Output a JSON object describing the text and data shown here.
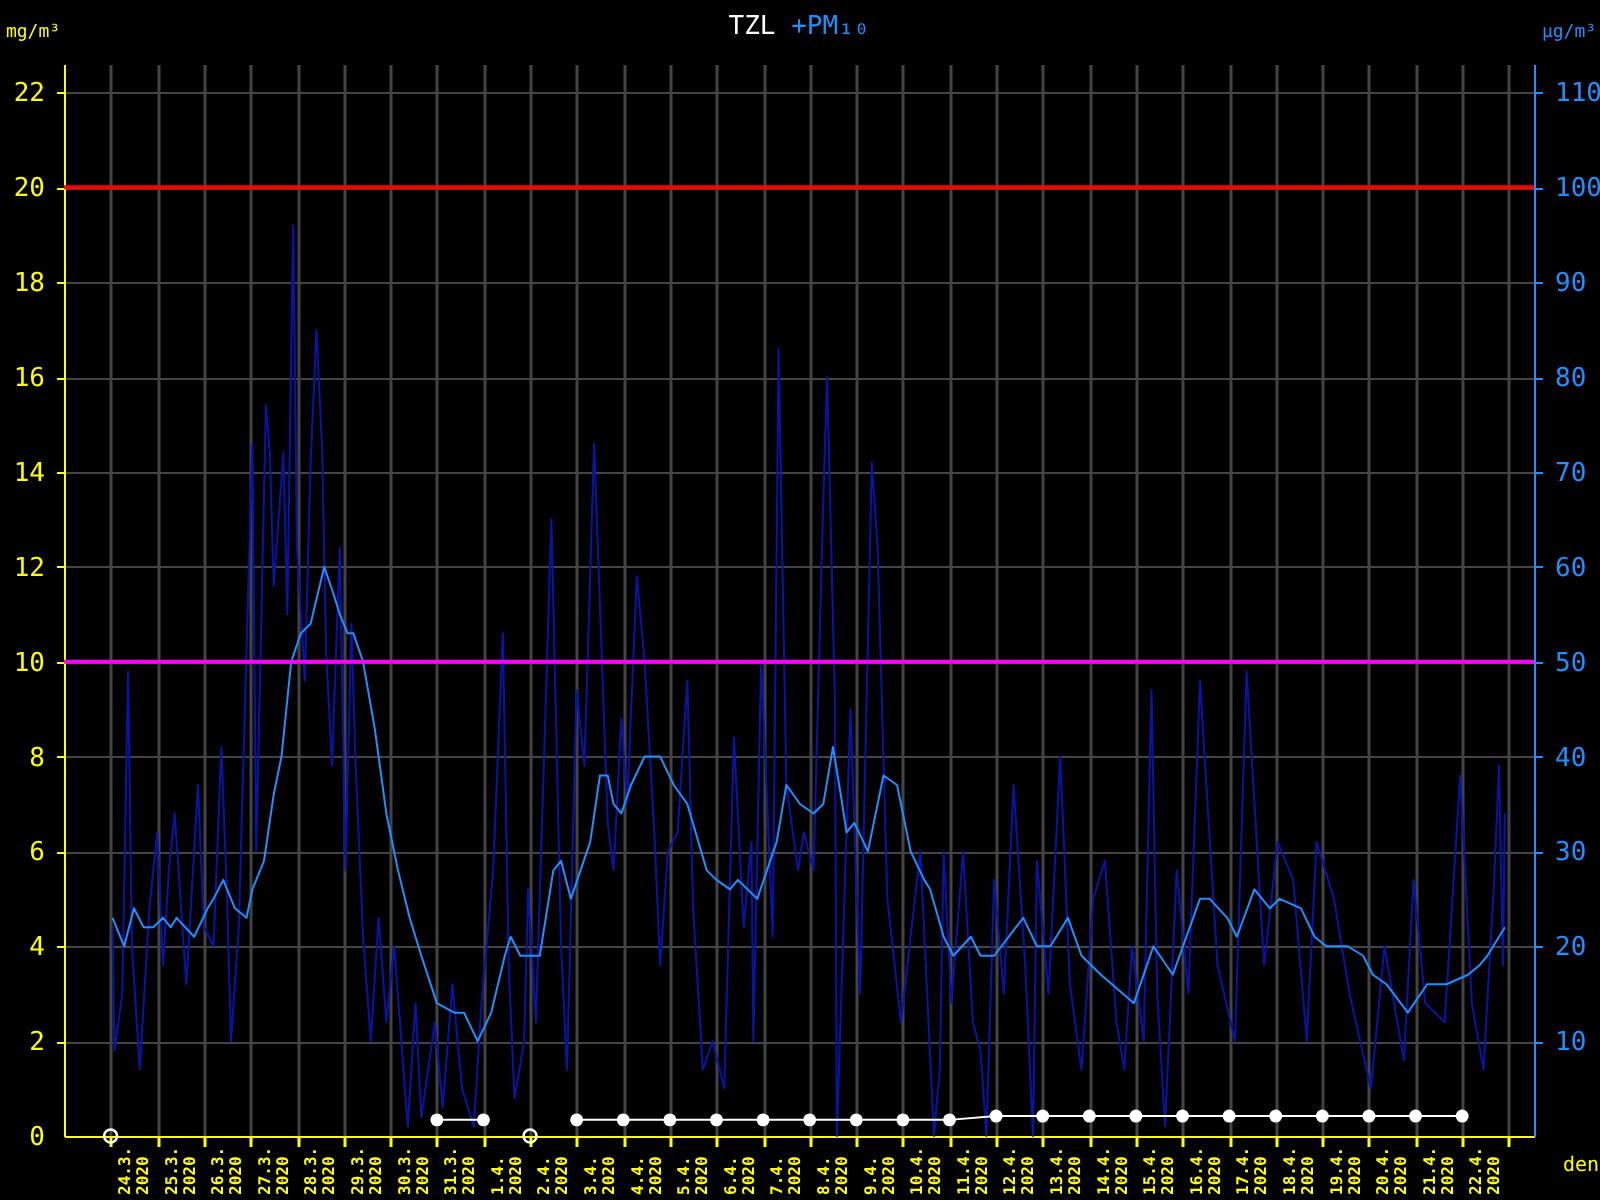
{
  "chart_data": {
    "type": "line",
    "legend": "top",
    "grid": true,
    "xlabel": "den",
    "ylabel": "mg/m³",
    "y2label": "µg/m³",
    "xlim": [
      "2020-03-23",
      "2020-04-23T13:00"
    ],
    "xticks": [
      {
        "value": "2020-03-24",
        "label": null
      },
      {
        "value": "2020-03-24T12:00",
        "label": "24.3.\n2020"
      },
      {
        "value": "2020-03-25",
        "label": null
      },
      {
        "value": "2020-03-25T12:00",
        "label": "25.3.\n2020"
      },
      {
        "value": "2020-03-26",
        "label": null
      },
      {
        "value": "2020-03-26T12:00",
        "label": "26.3.\n2020"
      },
      {
        "value": "2020-03-27",
        "label": null
      },
      {
        "value": "2020-03-27T12:00",
        "label": "27.3.\n2020"
      },
      {
        "value": "2020-03-28",
        "label": null
      },
      {
        "value": "2020-03-28T12:00",
        "label": "28.3.\n2020"
      },
      {
        "value": "2020-03-29",
        "label": null
      },
      {
        "value": "2020-03-29T12:00",
        "label": "29.3.\n2020"
      },
      {
        "value": "2020-03-30",
        "label": null
      },
      {
        "value": "2020-03-30T12:00",
        "label": "30.3.\n2020"
      },
      {
        "value": "2020-03-31",
        "label": null
      },
      {
        "value": "2020-03-31T12:00",
        "label": "31.3.\n2020"
      },
      {
        "value": "2020-04-01",
        "label": null
      },
      {
        "value": "2020-04-01T12:00",
        "label": "1.4.\n2020"
      },
      {
        "value": "2020-04-02",
        "label": null
      },
      {
        "value": "2020-04-02T12:00",
        "label": "2.4.\n2020"
      },
      {
        "value": "2020-04-03",
        "label": null
      },
      {
        "value": "2020-04-03T12:00",
        "label": "3.4.\n2020"
      },
      {
        "value": "2020-04-04",
        "label": null
      },
      {
        "value": "2020-04-04T12:00",
        "label": "4.4.\n2020"
      },
      {
        "value": "2020-04-05",
        "label": null
      },
      {
        "value": "2020-04-05T12:00",
        "label": "5.4.\n2020"
      },
      {
        "value": "2020-04-06",
        "label": null
      },
      {
        "value": "2020-04-06T12:00",
        "label": "6.4.\n2020"
      },
      {
        "value": "2020-04-07",
        "label": null
      },
      {
        "value": "2020-04-07T12:00",
        "label": "7.4.\n2020"
      },
      {
        "value": "2020-04-08",
        "label": null
      },
      {
        "value": "2020-04-08T12:00",
        "label": "8.4.\n2020"
      },
      {
        "value": "2020-04-09",
        "label": null
      },
      {
        "value": "2020-04-09T12:00",
        "label": "9.4.\n2020"
      },
      {
        "value": "2020-04-10",
        "label": null
      },
      {
        "value": "2020-04-10T12:00",
        "label": "10.4.\n2020"
      },
      {
        "value": "2020-04-11",
        "label": null
      },
      {
        "value": "2020-04-11T12:00",
        "label": "11.4.\n2020"
      },
      {
        "value": "2020-04-12",
        "label": null
      },
      {
        "value": "2020-04-12T12:00",
        "label": "12.4.\n2020"
      },
      {
        "value": "2020-04-13",
        "label": null
      },
      {
        "value": "2020-04-13T12:00",
        "label": "13.4.\n2020"
      },
      {
        "value": "2020-04-14",
        "label": null
      },
      {
        "value": "2020-04-14T12:00",
        "label": "14.4.\n2020"
      },
      {
        "value": "2020-04-15",
        "label": null
      },
      {
        "value": "2020-04-15T12:00",
        "label": "15.4.\n2020"
      },
      {
        "value": "2020-04-16",
        "label": null
      },
      {
        "value": "2020-04-16T12:00",
        "label": "16.4.\n2020"
      },
      {
        "value": "2020-04-17",
        "label": null
      },
      {
        "value": "2020-04-17T12:00",
        "label": "17.4.\n2020"
      },
      {
        "value": "2020-04-18",
        "label": null
      },
      {
        "value": "2020-04-18T12:00",
        "label": "18.4.\n2020"
      },
      {
        "value": "2020-04-19",
        "label": null
      },
      {
        "value": "2020-04-19T12:00",
        "label": "19.4.\n2020"
      },
      {
        "value": "2020-04-20",
        "label": null
      },
      {
        "value": "2020-04-20T12:00",
        "label": "20.4.\n2020"
      },
      {
        "value": "2020-04-21",
        "label": null
      },
      {
        "value": "2020-04-21T12:00",
        "label": "21.4.\n2020"
      },
      {
        "value": "2020-04-22",
        "label": null
      },
      {
        "value": "2020-04-22T12:00",
        "label": "22.4.\n2020"
      },
      {
        "value": "2020-04-23",
        "label": null
      }
    ],
    "ylim": [
      0,
      22.6
    ],
    "yticks": [
      0,
      2,
      4,
      6,
      8,
      10,
      12,
      14,
      16,
      18,
      20,
      22
    ],
    "y2lim": [
      0,
      113
    ],
    "y2ticks": [
      10,
      20,
      30,
      40,
      50,
      60,
      70,
      80,
      90,
      100,
      110
    ],
    "ref_lines": [
      {
        "axis": "y",
        "value": 20,
        "color": "#ff0000"
      },
      {
        "axis": "y",
        "value": 10,
        "color": "#ff00ff"
      }
    ],
    "series": [
      {
        "name": "TZL",
        "color": "#ffffff",
        "marker": "circle",
        "x": [
          "2020-03-31",
          "2020-04-01",
          "2020-04-02",
          "2020-04-03",
          "2020-04-04",
          "2020-04-05",
          "2020-04-06",
          "2020-04-07",
          "2020-04-08",
          "2020-04-09",
          "2020-04-10",
          "2020-04-11",
          "2020-04-12",
          "2020-04-13",
          "2020-04-14",
          "2020-04-15",
          "2020-04-16",
          "2020-04-17",
          "2020-04-18",
          "2020-04-19",
          "2020-04-20",
          "2020-04-21",
          "2020-04-22"
        ],
        "values": [
          0.34,
          0.34,
          null,
          0.34,
          0.34,
          0.34,
          0.34,
          0.34,
          0.34,
          0.34,
          0.34,
          0.34,
          0.42,
          0.42,
          0.42,
          0.42,
          0.42,
          0.42,
          0.42,
          0.42,
          0.42,
          0.42,
          0.42
        ]
      },
      {
        "type": "scatter",
        "color": "#ffffff",
        "marker": "circle",
        "x": [
          "2020-03-24",
          "2020-04-02"
        ],
        "values": [
          0,
          0
        ]
      },
      {
        "color": "#0814a8",
        "axis": "y2",
        "x": [
          "2020-03-24T01:00",
          "2020-03-24T02:00",
          "2020-03-24T06:00",
          "2020-03-24T09:00",
          "2020-03-24T11:00",
          "2020-03-24T15:00",
          "2020-03-24T20:00",
          "2020-03-25T00:00",
          "2020-03-25T03:00",
          "2020-03-25T06:00",
          "2020-03-25T09:00",
          "2020-03-25T15:00",
          "2020-03-25T21:00",
          "2020-03-26T00:00",
          "2020-03-26T05:00",
          "2020-03-26T09:00",
          "2020-03-26T12:00",
          "2020-03-26T14:00",
          "2020-03-26T18:00",
          "2020-03-27T01:00",
          "2020-03-27T03:00",
          "2020-03-27T08:00",
          "2020-03-27T10:00",
          "2020-03-27T12:00",
          "2020-03-27T17:00",
          "2020-03-27T19:00",
          "2020-03-27T22:00",
          "2020-03-28T00:00",
          "2020-03-28T04:00",
          "2020-03-28T07:00",
          "2020-03-28T10:00",
          "2020-03-28T13:00",
          "2020-03-28T15:00",
          "2020-03-28T18:00",
          "2020-03-28T22:00",
          "2020-03-29T01:00",
          "2020-03-29T04:00",
          "2020-03-29T06:00",
          "2020-03-29T10:00",
          "2020-03-29T14:00",
          "2020-03-29T18:00",
          "2020-03-29T22:00",
          "2020-03-30T02:00",
          "2020-03-30T05:00",
          "2020-03-30T09:00",
          "2020-03-30T13:00",
          "2020-03-30T16:00",
          "2020-03-30T23:00",
          "2020-03-31T03:00",
          "2020-03-31T08:00",
          "2020-03-31T13:00",
          "2020-03-31T19:00",
          "2020-03-31T23:00",
          "2020-04-01T05:00",
          "2020-04-01T10:00",
          "2020-04-01T13:00",
          "2020-04-01T16:00",
          "2020-04-01T21:00",
          "2020-04-01T23:00",
          "2020-04-02T03:00",
          "2020-04-02T11:00",
          "2020-04-02T16:00",
          "2020-04-02T19:00",
          "2020-04-03T00:00",
          "2020-04-03T04:00",
          "2020-04-03T09:00",
          "2020-04-03T16:00",
          "2020-04-03T19:00",
          "2020-04-03T23:00",
          "2020-04-04T02:00",
          "2020-04-04T07:00",
          "2020-04-04T11:00",
          "2020-04-04T16:00",
          "2020-04-04T19:00",
          "2020-04-04T23:00",
          "2020-04-05T04:00",
          "2020-04-05T09:00",
          "2020-04-05T12:00",
          "2020-04-05T17:00",
          "2020-04-05T22:00",
          "2020-04-06T04:00",
          "2020-04-06T09:00",
          "2020-04-06T14:00",
          "2020-04-06T18:00",
          "2020-04-06T19:00",
          "2020-04-06T23:00",
          "2020-04-07T05:00",
          "2020-04-07T08:00",
          "2020-04-07T12:00",
          "2020-04-07T18:00",
          "2020-04-07T21:00",
          "2020-04-08T02:00",
          "2020-04-08T07:00",
          "2020-04-08T09:00",
          "2020-04-08T13:00",
          "2020-04-08T14:00",
          "2020-04-08T21:00",
          "2020-04-09T02:00",
          "2020-04-09T08:00",
          "2020-04-09T11:00",
          "2020-04-09T16:00",
          "2020-04-09T23:00",
          "2020-04-10T09:00",
          "2020-04-10T16:00",
          "2020-04-10T19:00",
          "2020-04-10T21:00",
          "2020-04-11T01:00",
          "2020-04-11T07:00",
          "2020-04-11T12:00",
          "2020-04-11T16:00",
          "2020-04-11T19:00",
          "2020-04-11T23:00",
          "2020-04-12T04:00",
          "2020-04-12T09:00",
          "2020-04-12T15:00",
          "2020-04-12T19:00",
          "2020-04-12T21:00",
          "2020-04-13T03:00",
          "2020-04-13T09:00",
          "2020-04-13T14:00",
          "2020-04-13T20:00",
          "2020-04-14T02:00",
          "2020-04-14T08:00",
          "2020-04-14T14:00",
          "2020-04-14T18:00",
          "2020-04-14T22:00",
          "2020-04-15T04:00",
          "2020-04-15T08:00",
          "2020-04-15T11:00",
          "2020-04-15T15:00",
          "2020-04-15T21:00",
          "2020-04-16T03:00",
          "2020-04-16T09:00",
          "2020-04-16T18:00",
          "2020-04-17T03:00",
          "2020-04-17T09:00",
          "2020-04-17T18:00",
          "2020-04-18T01:00",
          "2020-04-18T09:00",
          "2020-04-18T16:00",
          "2020-04-18T21:00",
          "2020-04-19T06:00",
          "2020-04-19T14:00",
          "2020-04-20T01:00",
          "2020-04-20T08:00",
          "2020-04-20T18:00",
          "2020-04-20T23:00",
          "2020-04-21T05:00",
          "2020-04-21T15:00",
          "2020-04-21T23:00",
          "2020-04-22T05:00",
          "2020-04-22T11:00",
          "2020-04-22T16:00",
          "2020-04-22T19:00",
          "2020-04-22T21:00",
          "2020-04-22T22:00"
        ],
        "values": [
          22,
          9,
          15,
          49,
          20,
          7,
          24,
          32,
          18,
          28,
          34,
          16,
          37,
          22,
          20,
          41,
          25,
          10,
          22,
          73,
          30,
          77,
          72,
          58,
          72,
          55,
          96,
          62,
          48,
          71,
          85,
          72,
          51,
          39,
          62,
          28,
          54,
          40,
          21,
          10,
          23,
          12,
          20,
          12,
          1,
          14,
          2,
          12,
          3,
          16,
          5,
          1,
          14,
          28,
          53,
          18,
          4,
          10,
          26,
          12,
          65,
          20,
          7,
          47,
          39,
          73,
          33,
          28,
          44,
          35,
          59,
          50,
          32,
          18,
          30,
          32,
          48,
          24,
          7,
          10,
          5,
          42,
          22,
          31,
          10,
          50,
          21,
          83,
          37,
          28,
          32,
          28,
          67,
          80,
          46,
          0,
          45,
          15,
          71,
          62,
          25,
          12,
          30,
          0,
          7,
          30,
          14,
          30,
          12,
          9,
          0,
          27,
          15,
          37,
          18,
          0,
          29,
          15,
          40,
          16,
          7,
          25,
          29,
          12,
          7,
          20,
          10,
          47,
          15,
          1,
          28,
          15,
          48,
          18,
          10,
          49,
          18,
          31,
          27,
          10,
          31,
          25,
          15,
          5,
          20,
          8,
          27,
          14,
          12,
          38,
          14,
          7,
          25,
          39,
          18,
          34
        ]
      },
      {
        "name": "+PM₁₀",
        "color": "#1e90ff",
        "axis": "y2",
        "x": [
          "2020-03-24T01:00",
          "2020-03-24T07:00",
          "2020-03-24T12:00",
          "2020-03-24T17:00",
          "2020-03-24T22:00",
          "2020-03-25T03:00",
          "2020-03-25T07:00",
          "2020-03-25T10:00",
          "2020-03-25T19:00",
          "2020-03-26T02:00",
          "2020-03-26T05:00",
          "2020-03-26T10:00",
          "2020-03-26T16:00",
          "2020-03-26T22:00",
          "2020-03-27T01:00",
          "2020-03-27T07:00",
          "2020-03-27T12:00",
          "2020-03-27T16:00",
          "2020-03-27T21:00",
          "2020-03-28T02:00",
          "2020-03-28T07:00",
          "2020-03-28T14:00",
          "2020-03-28T19:00",
          "2020-03-28T22:00",
          "2020-03-29T02:00",
          "2020-03-29T05:00",
          "2020-03-29T10:00",
          "2020-03-29T16:00",
          "2020-03-29T22:00",
          "2020-03-30T04:00",
          "2020-03-30T10:00",
          "2020-03-30T16:00",
          "2020-03-31T00:00",
          "2020-03-31T09:00",
          "2020-03-31T14:00",
          "2020-03-31T21:00",
          "2020-04-01T04:00",
          "2020-04-01T11:00",
          "2020-04-01T14:00",
          "2020-04-01T19:00",
          "2020-04-02T05:00",
          "2020-04-02T12:00",
          "2020-04-02T16:00",
          "2020-04-02T21:00",
          "2020-04-03T02:00",
          "2020-04-03T07:00",
          "2020-04-03T12:00",
          "2020-04-03T16:00",
          "2020-04-03T19:00",
          "2020-04-03T23:00",
          "2020-04-04T04:00",
          "2020-04-04T11:00",
          "2020-04-04T19:00",
          "2020-04-05T02:00",
          "2020-04-05T09:00",
          "2020-04-05T19:00",
          "2020-04-06T00:00",
          "2020-04-06T07:00",
          "2020-04-06T11:00",
          "2020-04-06T21:00",
          "2020-04-07T02:00",
          "2020-04-07T07:00",
          "2020-04-07T12:00",
          "2020-04-07T19:00",
          "2020-04-08T02:00",
          "2020-04-08T07:00",
          "2020-04-08T12:00",
          "2020-04-08T16:00",
          "2020-04-08T19:00",
          "2020-04-08T23:00",
          "2020-04-09T06:00",
          "2020-04-09T14:00",
          "2020-04-09T21:00",
          "2020-04-10T04:00",
          "2020-04-10T11:00",
          "2020-04-10T14:00",
          "2020-04-10T21:00",
          "2020-04-11T02:00",
          "2020-04-11T11:00",
          "2020-04-11T16:00",
          "2020-04-11T23:00",
          "2020-04-12T14:00",
          "2020-04-12T21:00",
          "2020-04-13T04:00",
          "2020-04-13T13:00",
          "2020-04-13T20:00",
          "2020-04-14T06:00",
          "2020-04-14T23:00",
          "2020-04-15T09:00",
          "2020-04-15T19:00",
          "2020-04-16T09:00",
          "2020-04-16T14:00",
          "2020-04-16T23:00",
          "2020-04-17T04:00",
          "2020-04-17T13:00",
          "2020-04-17T21:00",
          "2020-04-18T02:00",
          "2020-04-18T13:00",
          "2020-04-18T20:00",
          "2020-04-19T02:00",
          "2020-04-19T13:00",
          "2020-04-19T21:00",
          "2020-04-20T02:00",
          "2020-04-20T09:00",
          "2020-04-20T20:00",
          "2020-04-21T06:00",
          "2020-04-21T16:00",
          "2020-04-22T03:00",
          "2020-04-22T09:00",
          "2020-04-22T13:00",
          "2020-04-22T22:00"
        ],
        "values": [
          23,
          20,
          24,
          22,
          22,
          23,
          22,
          23,
          21,
          24,
          25,
          27,
          24,
          23,
          26,
          29,
          36,
          40,
          50,
          53,
          54,
          60,
          57,
          55,
          53,
          53,
          50,
          43,
          34,
          28,
          23,
          19,
          14,
          13,
          13,
          10,
          13,
          19,
          21,
          19,
          19,
          28,
          29,
          25,
          28,
          31,
          38,
          38,
          35,
          34,
          37,
          40,
          40,
          37,
          35,
          28,
          27,
          26,
          27,
          25,
          28,
          31,
          37,
          35,
          34,
          35,
          41,
          36,
          32,
          33,
          30,
          38,
          37,
          30,
          27,
          26,
          21,
          19,
          21,
          19,
          19,
          23,
          20,
          20,
          23,
          19,
          17,
          14,
          20,
          17,
          25,
          25,
          23,
          21,
          26,
          24,
          25,
          24,
          21,
          20,
          20,
          19,
          17,
          16,
          13,
          16,
          16,
          17,
          18,
          19,
          22
        ]
      }
    ]
  }
}
